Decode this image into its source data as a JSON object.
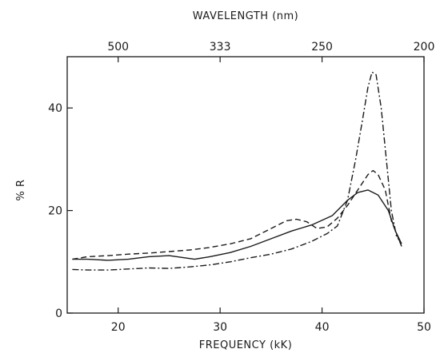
{
  "chart_data": {
    "type": "line",
    "title": "",
    "xlabel": "FREQUENCY (kK)",
    "ylabel": "% R",
    "xlim": [
      15,
      50
    ],
    "ylim": [
      0,
      50
    ],
    "x_ticks": [
      20,
      30,
      40,
      50
    ],
    "y_ticks": [
      0,
      20,
      40
    ],
    "top_axis": {
      "label": "WAVELENGTH (nm)",
      "ticks": [
        {
          "label": "500",
          "freq": 20
        },
        {
          "label": "333",
          "freq": 30
        },
        {
          "label": "250",
          "freq": 40
        },
        {
          "label": "200",
          "freq": 50
        }
      ]
    },
    "grid": false,
    "legend": "none",
    "series": [
      {
        "style": "solid",
        "points": [
          [
            15.5,
            10.5
          ],
          [
            17,
            10.5
          ],
          [
            19,
            10.3
          ],
          [
            21,
            10.5
          ],
          [
            23,
            11
          ],
          [
            25,
            11.2
          ],
          [
            27.5,
            10.5
          ],
          [
            29,
            11
          ],
          [
            31,
            11.8
          ],
          [
            33,
            13
          ],
          [
            35,
            14.5
          ],
          [
            37,
            16
          ],
          [
            39,
            17.2
          ],
          [
            41,
            19
          ],
          [
            42.5,
            22
          ],
          [
            43.5,
            23.5
          ],
          [
            44.5,
            24
          ],
          [
            45.5,
            23
          ],
          [
            46.5,
            20
          ],
          [
            47.2,
            16
          ],
          [
            47.8,
            13.5
          ]
        ]
      },
      {
        "style": "dashed",
        "points": [
          [
            15.5,
            10.5
          ],
          [
            17,
            11
          ],
          [
            19,
            11.2
          ],
          [
            21,
            11.5
          ],
          [
            23,
            11.7
          ],
          [
            25,
            12
          ],
          [
            27,
            12.3
          ],
          [
            29,
            12.8
          ],
          [
            31,
            13.5
          ],
          [
            33,
            14.5
          ],
          [
            35,
            16.5
          ],
          [
            36.5,
            18
          ],
          [
            37.5,
            18.3
          ],
          [
            38.5,
            17.8
          ],
          [
            39.5,
            16.5
          ],
          [
            40.5,
            16.8
          ],
          [
            41.5,
            18.5
          ],
          [
            42.5,
            21
          ],
          [
            43.5,
            24
          ],
          [
            44.5,
            27
          ],
          [
            45,
            27.8
          ],
          [
            45.5,
            27
          ],
          [
            46.2,
            24
          ],
          [
            46.8,
            18
          ],
          [
            47.8,
            13
          ]
        ]
      },
      {
        "style": "dash-dot",
        "points": [
          [
            15.5,
            8.5
          ],
          [
            17,
            8.4
          ],
          [
            19,
            8.4
          ],
          [
            21,
            8.6
          ],
          [
            23,
            8.8
          ],
          [
            25,
            8.7
          ],
          [
            27,
            9
          ],
          [
            29,
            9.4
          ],
          [
            31,
            10
          ],
          [
            33,
            10.8
          ],
          [
            35,
            11.5
          ],
          [
            37,
            12.5
          ],
          [
            39,
            14
          ],
          [
            40.5,
            15.5
          ],
          [
            41.5,
            17
          ],
          [
            42.5,
            22
          ],
          [
            43.3,
            30
          ],
          [
            44,
            38
          ],
          [
            44.5,
            44
          ],
          [
            44.9,
            47
          ],
          [
            45.3,
            46.5
          ],
          [
            45.8,
            40
          ],
          [
            46.3,
            30
          ],
          [
            46.8,
            20
          ],
          [
            47.3,
            15
          ],
          [
            47.8,
            13.5
          ]
        ]
      }
    ]
  }
}
